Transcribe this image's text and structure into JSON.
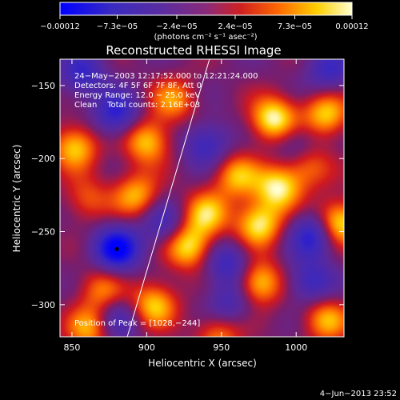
{
  "chart_data": {
    "type": "heatmap",
    "title": "Reconstructed RHESSI Image",
    "xlabel": "Heliocentric X (arcsec)",
    "ylabel": "Heliocentric Y (arcsec)",
    "x_range": [
      842,
      1032
    ],
    "y_range": [
      -322,
      -132
    ],
    "x_ticks": [
      850,
      900,
      950,
      1000
    ],
    "y_ticks": [
      -150,
      -200,
      -250,
      -300
    ],
    "x_tick_labels": [
      "850",
      "900",
      "950",
      "1000"
    ],
    "y_tick_labels": [
      "−150",
      "−200",
      "−250",
      "−300"
    ],
    "colorbar": {
      "min": -0.00012,
      "max": 0.00012,
      "ticks": [
        -0.00012,
        -7.3e-05,
        -2.4e-05,
        2.4e-05,
        7.3e-05,
        0.00012
      ],
      "tick_labels": [
        "−0.00012",
        "−7.3e−05",
        "−2.4e−05",
        "2.4e−05",
        "7.3e−05",
        "0.00012"
      ],
      "units_label": "(photons cm⁻² s⁻¹ asec⁻²)",
      "colors": [
        "#0000ff",
        "#5a2da0",
        "#8a2a7a",
        "#d02020",
        "#ff6a00",
        "#ffcf00",
        "#ffffc8"
      ]
    },
    "info_lines": [
      "24−May−2003 12:17:52.000 to 12:21:24.000",
      "Detectors: 4F 5F 6F 7F 8F, Att 0",
      "Energy Range: 12.0 − 25.0 keV",
      "Clean    Total counts: 2.16E+03"
    ],
    "peak_label": "Position of Peak = [1028,−244]",
    "peak_position": [
      1028,
      -244
    ],
    "limb_line": [
      [
        887,
        -322
      ],
      [
        942,
        -132
      ]
    ],
    "blobs": [
      {
        "x": 985,
        "y": -173,
        "v": 1.0
      },
      {
        "x": 1020,
        "y": -170,
        "v": 0.8
      },
      {
        "x": 1028,
        "y": -244,
        "v": 1.0
      },
      {
        "x": 975,
        "y": -245,
        "v": 0.9
      },
      {
        "x": 988,
        "y": -220,
        "v": 0.9
      },
      {
        "x": 975,
        "y": -285,
        "v": 0.85
      },
      {
        "x": 928,
        "y": -260,
        "v": 0.9
      },
      {
        "x": 940,
        "y": -238,
        "v": 0.75
      },
      {
        "x": 960,
        "y": -212,
        "v": 0.7
      },
      {
        "x": 900,
        "y": -188,
        "v": 0.8
      },
      {
        "x": 852,
        "y": -192,
        "v": 0.8
      },
      {
        "x": 893,
        "y": -225,
        "v": 0.7
      },
      {
        "x": 918,
        "y": -160,
        "v": 0.6
      },
      {
        "x": 905,
        "y": -300,
        "v": 0.8
      },
      {
        "x": 870,
        "y": -290,
        "v": 0.55
      },
      {
        "x": 862,
        "y": -316,
        "v": 0.7
      },
      {
        "x": 1020,
        "y": -310,
        "v": 0.7
      },
      {
        "x": 1008,
        "y": -205,
        "v": 0.55
      },
      {
        "x": 948,
        "y": -320,
        "v": 0.6
      },
      {
        "x": 860,
        "y": -228,
        "v": 0.45
      },
      {
        "x": 880,
        "y": -262,
        "v": -1.0
      },
      {
        "x": 880,
        "y": -170,
        "v": -0.7
      },
      {
        "x": 857,
        "y": -142,
        "v": -0.6
      },
      {
        "x": 940,
        "y": -190,
        "v": -0.6
      },
      {
        "x": 1012,
        "y": -252,
        "v": -0.8
      },
      {
        "x": 955,
        "y": -272,
        "v": -0.6
      },
      {
        "x": 955,
        "y": -300,
        "v": -0.5
      },
      {
        "x": 1010,
        "y": -285,
        "v": -0.6
      },
      {
        "x": 1022,
        "y": -140,
        "v": -0.55
      },
      {
        "x": 912,
        "y": -245,
        "v": -0.5
      },
      {
        "x": 880,
        "y": -310,
        "v": -0.5
      },
      {
        "x": 1000,
        "y": -190,
        "v": -0.4
      }
    ]
  },
  "footer": {
    "date": "4−Jun−2013 23:52"
  }
}
